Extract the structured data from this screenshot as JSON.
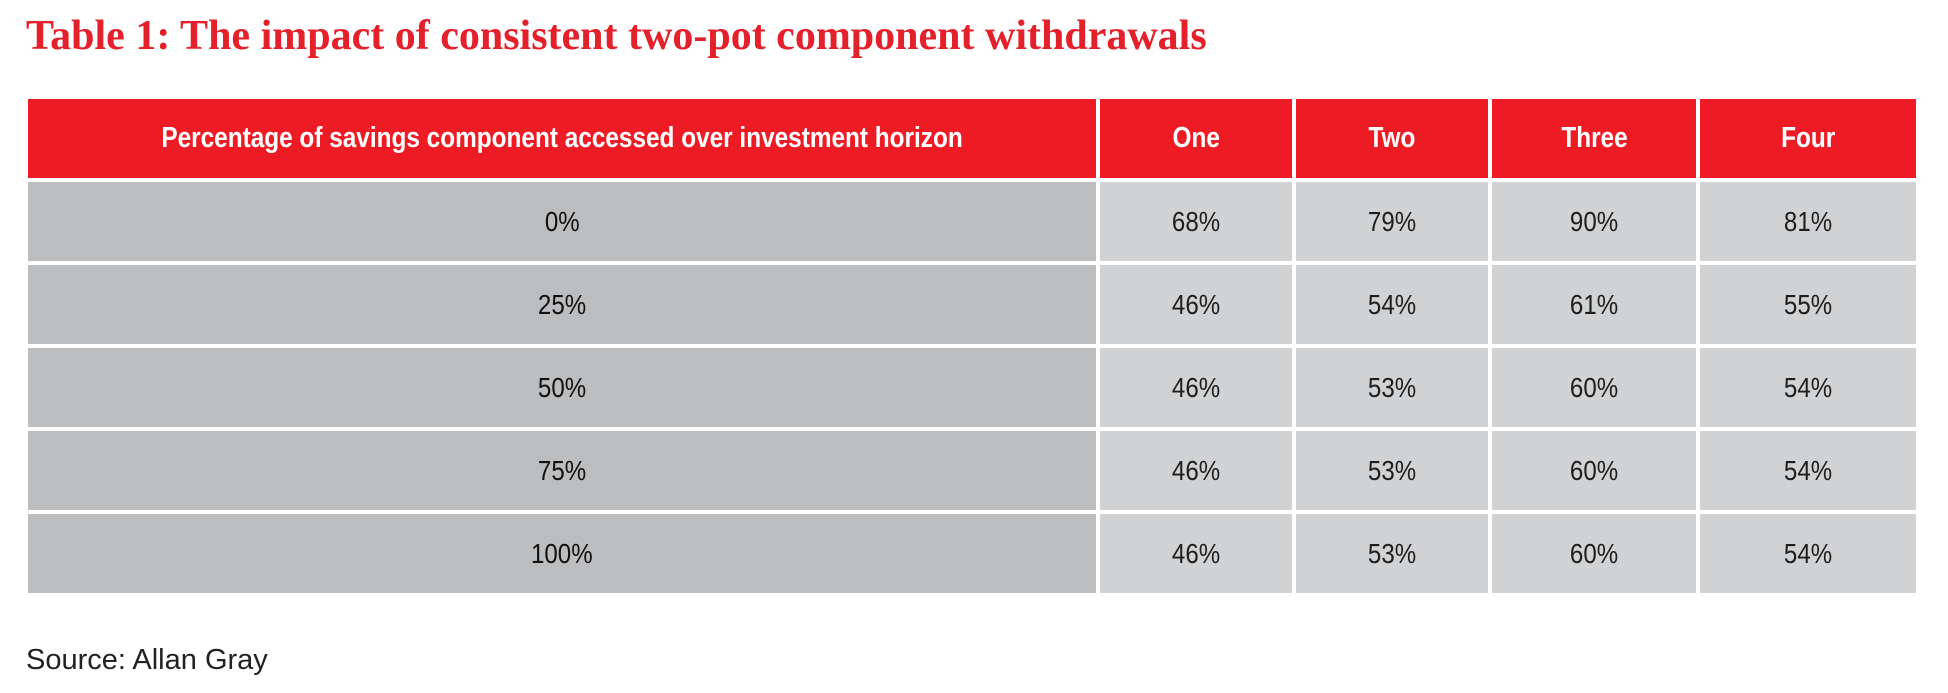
{
  "title": "Table 1: The impact of consistent two-pot component withdrawals",
  "source": "Source: Allan Gray",
  "colors": {
    "title": "#e4202a",
    "header_bg": "#ed1c24",
    "label_cell_bg": "#bcbdbf",
    "value_cell_bg": "#d1d2d4"
  },
  "chart_data": {
    "type": "table",
    "title": "Table 1: The impact of consistent two-pot component withdrawals",
    "columns": [
      "Percentage of savings component accessed over investment horizon",
      "One",
      "Two",
      "Three",
      "Four"
    ],
    "rows": [
      {
        "label": "0%",
        "values": [
          "68%",
          "79%",
          "90%",
          "81%"
        ]
      },
      {
        "label": "25%",
        "values": [
          "46%",
          "54%",
          "61%",
          "55%"
        ]
      },
      {
        "label": "50%",
        "values": [
          "46%",
          "53%",
          "60%",
          "54%"
        ]
      },
      {
        "label": "75%",
        "values": [
          "46%",
          "53%",
          "60%",
          "54%"
        ]
      },
      {
        "label": "100%",
        "values": [
          "46%",
          "53%",
          "60%",
          "54%"
        ]
      }
    ],
    "source": "Source: Allan Gray"
  }
}
